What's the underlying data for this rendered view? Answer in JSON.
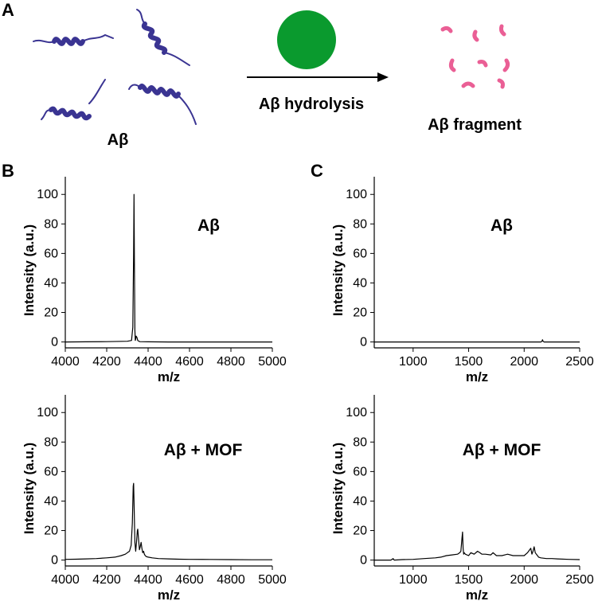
{
  "panels": {
    "A": {
      "letter": "A",
      "peptide_label": "Aβ",
      "arrow_label": "Aβ hydrolysis",
      "product_label": "Aβ fragment",
      "colors": {
        "peptide": "#3a3492",
        "catalyst": "#0a9a2e",
        "fragment": "#ea5f95"
      },
      "icons": [
        "peptide-helix-icon",
        "mof-sphere-icon",
        "reaction-arrow-icon",
        "fragment-icon"
      ]
    },
    "B": {
      "letter": "B"
    },
    "C": {
      "letter": "C"
    }
  },
  "chart_data": [
    {
      "type": "line",
      "panel": "B",
      "inset_label": "Aβ",
      "xlabel": "m/z",
      "ylabel": "Intensity (a.u.)",
      "xlim": [
        4000,
        5000
      ],
      "ylim": [
        -4,
        112
      ],
      "xticks": [
        4000,
        4200,
        4400,
        4600,
        4800,
        5000
      ],
      "yticks": [
        0,
        20,
        40,
        60,
        80,
        100
      ],
      "series": [
        {
          "x": [
            4000,
            4100,
            4200,
            4300,
            4320,
            4326,
            4330,
            4332,
            4334,
            4336,
            4338,
            4340,
            4342,
            4346,
            4350,
            4356,
            4360,
            4400,
            4500,
            4600,
            4800,
            5000
          ],
          "y": [
            0,
            0.1,
            0.2,
            0.5,
            1,
            10,
            60,
            100,
            55,
            8,
            1,
            2,
            4,
            3,
            1,
            0.5,
            0.2,
            0.1,
            0,
            0,
            0,
            0
          ]
        }
      ]
    },
    {
      "type": "line",
      "panel": "C",
      "inset_label": "Aβ",
      "xlabel": "m/z",
      "ylabel": "Intensity (a.u.)",
      "xlim": [
        650,
        2500
      ],
      "ylim": [
        -4,
        112
      ],
      "xticks": [
        1000,
        1500,
        2000,
        2500
      ],
      "yticks": [
        0,
        20,
        40,
        60,
        80,
        100
      ],
      "series": [
        {
          "x": [
            650,
            1000,
            1500,
            2000,
            2150,
            2160,
            2165,
            2170,
            2180,
            2500
          ],
          "y": [
            0,
            0,
            0,
            0,
            0,
            0.5,
            1.5,
            0.5,
            0,
            0
          ]
        }
      ]
    },
    {
      "type": "line",
      "panel": "B",
      "inset_label": "Aβ + MOF",
      "xlabel": "m/z",
      "ylabel": "Intensity (a.u.)",
      "xlim": [
        4000,
        5000
      ],
      "ylim": [
        -4,
        112
      ],
      "xticks": [
        4000,
        4200,
        4400,
        4600,
        4800,
        5000
      ],
      "yticks": [
        0,
        20,
        40,
        60,
        80,
        100
      ],
      "series": [
        {
          "x": [
            4000,
            4050,
            4100,
            4150,
            4200,
            4240,
            4270,
            4290,
            4300,
            4310,
            4318,
            4324,
            4328,
            4330,
            4332,
            4336,
            4340,
            4344,
            4348,
            4350,
            4354,
            4358,
            4362,
            4366,
            4370,
            4374,
            4378,
            4382,
            4386,
            4390,
            4400,
            4420,
            4450,
            4500,
            4550,
            4600,
            4700,
            4800,
            4900,
            5000
          ],
          "y": [
            0.5,
            0.6,
            0.8,
            1,
            1.5,
            2,
            3,
            4,
            5,
            6,
            10,
            25,
            50,
            52,
            40,
            12,
            6,
            12,
            20,
            21,
            14,
            7,
            9,
            12,
            8,
            5,
            6,
            4,
            3,
            2.5,
            2,
            1.5,
            1,
            0.8,
            0.6,
            0.5,
            0.4,
            0.3,
            0.2,
            0.2
          ]
        }
      ]
    },
    {
      "type": "line",
      "panel": "C",
      "inset_label": "Aβ + MOF",
      "xlabel": "m/z",
      "ylabel": "Intensity (a.u.)",
      "xlim": [
        650,
        2500
      ],
      "ylim": [
        -4,
        112
      ],
      "xticks": [
        1000,
        1500,
        2000,
        2500
      ],
      "yticks": [
        0,
        20,
        40,
        60,
        80,
        100
      ],
      "series": [
        {
          "x": [
            650,
            800,
            820,
            830,
            900,
            1000,
            1100,
            1200,
            1250,
            1300,
            1350,
            1400,
            1420,
            1430,
            1440,
            1445,
            1450,
            1455,
            1460,
            1470,
            1500,
            1520,
            1550,
            1580,
            1600,
            1620,
            1650,
            1700,
            1720,
            1750,
            1800,
            1850,
            1900,
            1950,
            2000,
            2030,
            2050,
            2060,
            2070,
            2080,
            2090,
            2100,
            2110,
            2120,
            2130,
            2150,
            2200,
            2250,
            2300,
            2400,
            2500
          ],
          "y": [
            0,
            0,
            1,
            0,
            0.3,
            0.5,
            1,
            1.5,
            2,
            3,
            3.5,
            4,
            5,
            6,
            15,
            19,
            8,
            4,
            5,
            4,
            3,
            5,
            4,
            6,
            5,
            4,
            4,
            3.5,
            5,
            3,
            3,
            4,
            3,
            3,
            3,
            5,
            7,
            8,
            4,
            6,
            9,
            5,
            4,
            3,
            2,
            1.5,
            1,
            1,
            0.8,
            0.5,
            0.3
          ]
        }
      ]
    }
  ]
}
